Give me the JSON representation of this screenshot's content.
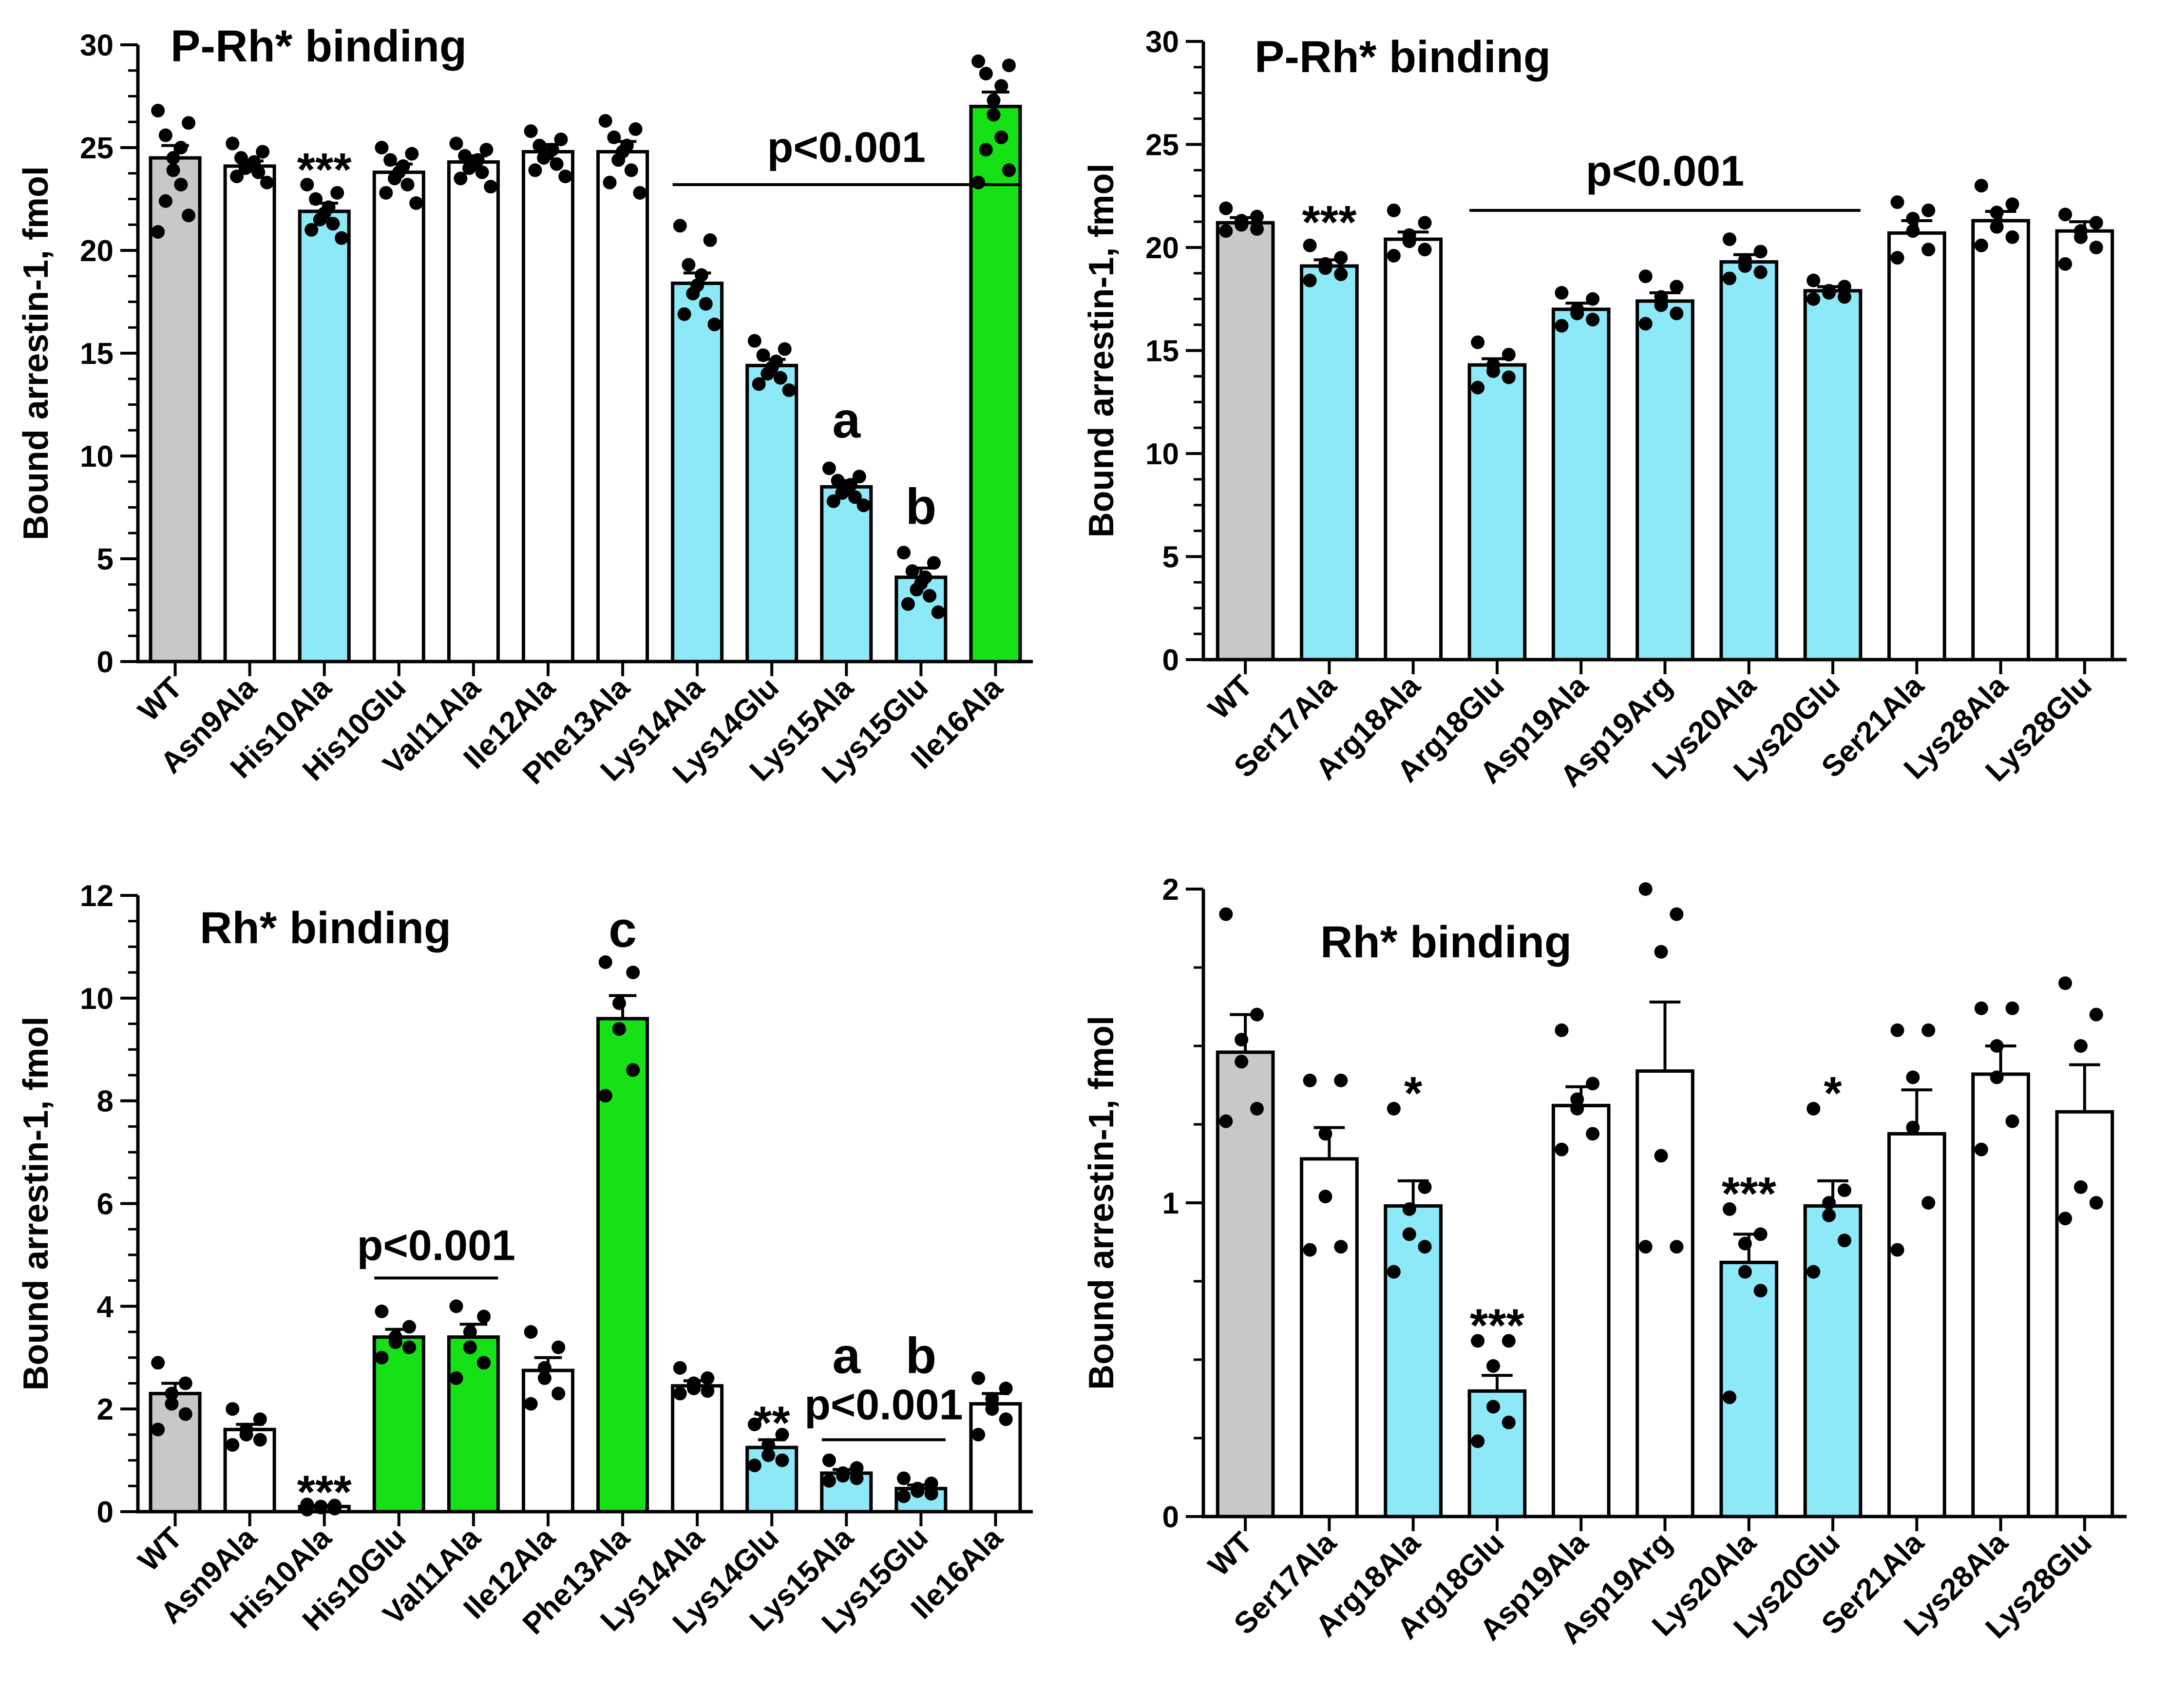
{
  "colors": {
    "wt": "#c8c8c8",
    "blue": "#8de8f8",
    "green": "#16e016",
    "white": "#ffffff",
    "axis": "#000000"
  },
  "chart_data": [
    {
      "type": "bar",
      "title": "P-Rh* binding",
      "ylabel": "Bound arrestin-1,  fmol",
      "ylim": [
        0,
        30
      ],
      "yticks": [
        "0",
        "5",
        "10",
        "15",
        "20",
        "25",
        "30"
      ],
      "categories": [
        "WT",
        "Asn9Ala",
        "His10Ala",
        "His10Glu",
        "Val11Ala",
        "Ile12Ala",
        "Phe13Ala",
        "Lys14Ala",
        "Lys14Glu",
        "Lys15Ala",
        "Lys15Glu",
        "Ile16Ala"
      ],
      "values": [
        24.5,
        24.1,
        21.9,
        23.8,
        24.3,
        24.8,
        24.8,
        18.4,
        14.4,
        8.5,
        4.1,
        27.0
      ],
      "sem": [
        0.6,
        0.25,
        0.4,
        0.4,
        0.3,
        0.35,
        0.5,
        0.5,
        0.3,
        0.3,
        0.45,
        0.7
      ],
      "bar_colors": [
        "wt",
        "white",
        "blue",
        "white",
        "white",
        "white",
        "white",
        "blue",
        "blue",
        "blue",
        "blue",
        "green"
      ],
      "points": [
        [
          26.8,
          26.2,
          25.6,
          25.0,
          24.5,
          23.9,
          23.2,
          22.4,
          21.7,
          20.9
        ],
        [
          25.2,
          24.8,
          24.5,
          24.3,
          24.1,
          24.0,
          23.8,
          23.6,
          23.3
        ],
        [
          23.2,
          22.8,
          22.5,
          22.1,
          21.8,
          21.5,
          21.3,
          21.0,
          20.6
        ],
        [
          25.0,
          24.7,
          24.4,
          24.1,
          23.8,
          23.5,
          23.2,
          22.8,
          22.3
        ],
        [
          25.2,
          24.9,
          24.6,
          24.4,
          24.2,
          24.0,
          23.8,
          23.5,
          23.1
        ],
        [
          25.8,
          25.4,
          25.1,
          24.9,
          24.7,
          24.5,
          24.2,
          23.9,
          23.6
        ],
        [
          26.3,
          25.9,
          25.5,
          25.1,
          24.8,
          24.4,
          23.9,
          23.3,
          22.8
        ],
        [
          21.2,
          20.5,
          19.3,
          18.8,
          18.3,
          17.9,
          17.4,
          16.9,
          16.4
        ],
        [
          15.6,
          15.2,
          14.9,
          14.6,
          14.3,
          14.0,
          13.8,
          13.5,
          13.2
        ],
        [
          9.4,
          9.0,
          8.8,
          8.6,
          8.4,
          8.2,
          8.0,
          7.8,
          7.6
        ],
        [
          5.3,
          4.8,
          4.4,
          4.1,
          3.8,
          3.5,
          3.2,
          2.8,
          2.4
        ],
        [
          29.2,
          29.0,
          28.6,
          28.0,
          27.3,
          26.6,
          25.5,
          24.9,
          23.9,
          23.3
        ]
      ],
      "annotations": [
        {
          "text": "***",
          "category": 2,
          "y": 24.1,
          "kind": "sig"
        },
        {
          "text": "a",
          "category": 9,
          "y": 10.9,
          "kind": "letter"
        },
        {
          "text": "b",
          "category": 10,
          "y": 6.7,
          "kind": "letter"
        }
      ],
      "brackets": [
        {
          "text": "p<0.001",
          "from": 7,
          "to": 11,
          "y": 23.2,
          "label_y": 24.3
        }
      ]
    },
    {
      "type": "bar",
      "title": "P-Rh* binding",
      "ylabel": "Bound arrestin-1,  fmol",
      "ylim": [
        0,
        30
      ],
      "yticks": [
        "0",
        "5",
        "10",
        "15",
        "20",
        "25",
        "30"
      ],
      "categories": [
        "WT",
        "Ser17Ala",
        "Arg18Ala",
        "Arg18Glu",
        "Asp19Ala",
        "Asp19Arg",
        "Lys20Ala",
        "Lys20Glu",
        "Ser21Ala",
        "Lys28Ala",
        "Lys28Glu"
      ],
      "values": [
        21.2,
        19.1,
        20.4,
        14.3,
        17.0,
        17.4,
        19.3,
        17.9,
        20.7,
        21.3,
        20.8
      ],
      "sem": [
        0.25,
        0.3,
        0.35,
        0.3,
        0.3,
        0.4,
        0.35,
        0.2,
        0.6,
        0.45,
        0.45
      ],
      "bar_colors": [
        "wt",
        "blue",
        "white",
        "blue",
        "blue",
        "blue",
        "blue",
        "blue",
        "white",
        "white",
        "white"
      ],
      "points": [
        [
          21.9,
          21.5,
          21.3,
          21.1,
          20.9,
          20.8
        ],
        [
          20.1,
          19.5,
          19.2,
          19.0,
          18.7,
          18.4
        ],
        [
          21.8,
          21.2,
          20.6,
          20.3,
          19.9,
          19.6
        ],
        [
          15.4,
          14.8,
          14.3,
          14.0,
          13.7,
          13.2
        ],
        [
          17.8,
          17.5,
          17.0,
          16.8,
          16.5,
          16.2
        ],
        [
          18.6,
          18.1,
          17.6,
          17.2,
          16.8,
          16.3
        ],
        [
          20.4,
          19.8,
          19.4,
          19.1,
          18.8,
          18.5
        ],
        [
          18.4,
          18.1,
          17.9,
          17.8,
          17.6,
          17.5
        ],
        [
          22.2,
          21.8,
          21.4,
          20.8,
          19.9,
          19.5
        ],
        [
          23.0,
          22.1,
          21.7,
          21.0,
          20.5,
          20.1
        ],
        [
          21.6,
          21.2,
          20.8,
          20.5,
          20.0,
          19.2
        ]
      ],
      "annotations": [
        {
          "text": "***",
          "category": 1,
          "y": 21.4,
          "kind": "sig"
        }
      ],
      "brackets": [
        {
          "text": "p<0.001",
          "from": 3,
          "to": 7,
          "y": 21.8,
          "label_y": 23.0
        }
      ]
    },
    {
      "type": "bar",
      "title": "Rh* binding",
      "ylabel": "Bound arrestin-1,  fmol",
      "ylim": [
        0,
        12
      ],
      "yticks": [
        "0",
        "2",
        "4",
        "6",
        "8",
        "10",
        "12"
      ],
      "categories": [
        "WT",
        "Asn9Ala",
        "His10Ala",
        "His10Glu",
        "Val11Ala",
        "Ile12Ala",
        "Phe13Ala",
        "Lys14Ala",
        "Lys14Glu",
        "Lys15Ala",
        "Lys15Glu",
        "Ile16Ala"
      ],
      "values": [
        2.3,
        1.6,
        0.1,
        3.4,
        3.4,
        2.75,
        9.6,
        2.45,
        1.25,
        0.75,
        0.45,
        2.1
      ],
      "sem": [
        0.2,
        0.1,
        0.02,
        0.15,
        0.25,
        0.25,
        0.45,
        0.1,
        0.15,
        0.07,
        0.07,
        0.2
      ],
      "bar_colors": [
        "wt",
        "white",
        "white",
        "green",
        "green",
        "white",
        "green",
        "white",
        "blue",
        "blue",
        "blue",
        "white"
      ],
      "points": [
        [
          2.9,
          2.5,
          2.3,
          2.1,
          1.9,
          1.6
        ],
        [
          2.0,
          1.8,
          1.6,
          1.5,
          1.4,
          1.3
        ],
        [
          0.14,
          0.12,
          0.1,
          0.08,
          0.06,
          0.04
        ],
        [
          3.9,
          3.6,
          3.4,
          3.3,
          3.2,
          3.0
        ],
        [
          4.0,
          3.8,
          3.5,
          3.2,
          2.9,
          2.6
        ],
        [
          3.5,
          3.2,
          2.8,
          2.6,
          2.3,
          2.1
        ],
        [
          10.7,
          10.5,
          9.9,
          9.4,
          8.6,
          8.1
        ],
        [
          2.8,
          2.6,
          2.5,
          2.4,
          2.35,
          2.3
        ],
        [
          1.7,
          1.5,
          1.3,
          1.1,
          1.0,
          0.9
        ],
        [
          1.0,
          0.85,
          0.75,
          0.7,
          0.65,
          0.6
        ],
        [
          0.65,
          0.55,
          0.45,
          0.4,
          0.35,
          0.3
        ],
        [
          2.6,
          2.4,
          2.2,
          2.0,
          1.8,
          1.5
        ]
      ],
      "annotations": [
        {
          "text": "***",
          "category": 2,
          "y": 0.45,
          "kind": "sig"
        },
        {
          "text": "c",
          "category": 6,
          "y": 11.0,
          "kind": "letter"
        },
        {
          "text": "**",
          "category": 8,
          "y": 1.8,
          "kind": "sig"
        },
        {
          "text": "a",
          "category": 9,
          "y": 2.7,
          "kind": "letter"
        },
        {
          "text": "b",
          "category": 10,
          "y": 2.7,
          "kind": "letter"
        }
      ],
      "brackets": [
        {
          "text": "p<0.001",
          "from": 3,
          "to": 4,
          "y": 4.55,
          "label_y": 4.9
        },
        {
          "text": "p<0.001",
          "from": 9,
          "to": 10,
          "y": 1.4,
          "label_y": 1.8
        }
      ]
    },
    {
      "type": "bar",
      "title": "Rh* binding",
      "ylabel": "Bound arrestin-1,  fmol",
      "ylim": [
        0,
        2
      ],
      "yticks": [
        "0",
        "1",
        "2"
      ],
      "categories": [
        "WT",
        "Ser17Ala",
        "Arg18Ala",
        "Arg18Glu",
        "Asp19Ala",
        "Asp19Arg",
        "Lys20Ala",
        "Lys20Glu",
        "Ser21Ala",
        "Lys28Ala",
        "Lys28Glu"
      ],
      "values": [
        1.48,
        1.14,
        0.99,
        0.4,
        1.31,
        1.42,
        0.81,
        0.99,
        1.22,
        1.41,
        1.29
      ],
      "sem": [
        0.12,
        0.1,
        0.08,
        0.05,
        0.06,
        0.22,
        0.09,
        0.08,
        0.14,
        0.09,
        0.15
      ],
      "bar_colors": [
        "wt",
        "white",
        "blue",
        "blue",
        "white",
        "white",
        "blue",
        "blue",
        "white",
        "white",
        "white"
      ],
      "points": [
        [
          1.92,
          1.6,
          1.52,
          1.45,
          1.3,
          1.26
        ],
        [
          1.39,
          1.39,
          1.22,
          1.02,
          0.86,
          0.85
        ],
        [
          1.3,
          1.05,
          0.98,
          0.9,
          0.86,
          0.78
        ],
        [
          0.56,
          0.56,
          0.48,
          0.35,
          0.3,
          0.24
        ],
        [
          1.55,
          1.38,
          1.33,
          1.3,
          1.22,
          1.17
        ],
        [
          2.0,
          1.92,
          1.8,
          1.15,
          0.86,
          0.86
        ],
        [
          0.98,
          0.9,
          0.87,
          0.78,
          0.72,
          0.38
        ],
        [
          1.3,
          1.04,
          1.0,
          0.96,
          0.88,
          0.78
        ],
        [
          1.55,
          1.55,
          1.4,
          1.24,
          1.0,
          0.85
        ],
        [
          1.62,
          1.62,
          1.5,
          1.4,
          1.26,
          1.17
        ],
        [
          1.7,
          1.6,
          1.5,
          1.05,
          1.0,
          0.95
        ]
      ],
      "annotations": [
        {
          "text": "*",
          "category": 2,
          "y": 1.36,
          "kind": "sig"
        },
        {
          "text": "***",
          "category": 3,
          "y": 0.62,
          "kind": "sig"
        },
        {
          "text": "***",
          "category": 6,
          "y": 1.04,
          "kind": "sig"
        },
        {
          "text": "*",
          "category": 7,
          "y": 1.36,
          "kind": "sig"
        }
      ],
      "brackets": []
    }
  ]
}
